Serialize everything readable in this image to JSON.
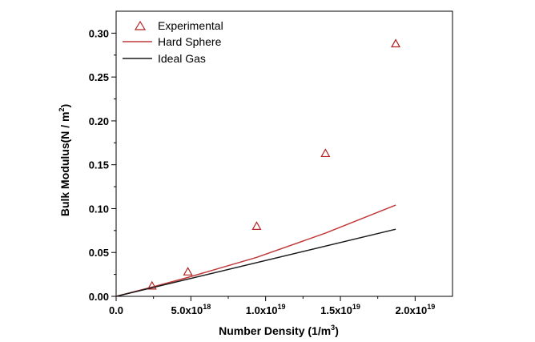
{
  "chart_data": {
    "type": "scatter",
    "xlabel": "Number Density (1/m",
    "xlabel_sup": "3",
    "xlabel_end": ")",
    "ylabel": "Bulk Modulus(N / m",
    "ylabel_sup": "2",
    "ylabel_end": ")",
    "xlim": [
      0,
      2.25e+19
    ],
    "ylim": [
      0,
      0.325
    ],
    "x_ticks": [
      {
        "value": 0,
        "mant": "0.0",
        "exp": ""
      },
      {
        "value": 5e+18,
        "mant": "5.0x10",
        "exp": "18"
      },
      {
        "value": 1e+19,
        "mant": "1.0x10",
        "exp": "19"
      },
      {
        "value": 1.5e+19,
        "mant": "1.5x10",
        "exp": "19"
      },
      {
        "value": 2e+19,
        "mant": "2.0x10",
        "exp": "19"
      }
    ],
    "y_ticks": [
      {
        "value": 0,
        "label": "0.00"
      },
      {
        "value": 0.05,
        "label": "0.05"
      },
      {
        "value": 0.1,
        "label": "0.10"
      },
      {
        "value": 0.15,
        "label": "0.15"
      },
      {
        "value": 0.2,
        "label": "0.20"
      },
      {
        "value": 0.25,
        "label": "0.25"
      },
      {
        "value": 0.3,
        "label": "0.30"
      }
    ],
    "series": [
      {
        "name": "Experimental",
        "kind": "scatter",
        "marker": "triangle",
        "color": "#b22222",
        "points": [
          [
            2.4e+18,
            0.012
          ],
          [
            4.8e+18,
            0.028
          ],
          [
            9.4e+18,
            0.08
          ],
          [
            1.4e+19,
            0.163
          ],
          [
            1.87e+19,
            0.288
          ]
        ]
      },
      {
        "name": "Hard Sphere",
        "kind": "line",
        "color": "#c0393b",
        "points": [
          [
            0,
            0.0
          ],
          [
            2.4e+18,
            0.0105
          ],
          [
            4.8e+18,
            0.0215
          ],
          [
            9.4e+18,
            0.0445
          ],
          [
            1.4e+19,
            0.072
          ],
          [
            1.87e+19,
            0.104
          ]
        ]
      },
      {
        "name": "Ideal Gas",
        "kind": "line",
        "color": "#1a1a1a",
        "points": [
          [
            0,
            0.0
          ],
          [
            1.87e+19,
            0.0765
          ]
        ]
      }
    ],
    "legend": "top-left",
    "grid": false
  }
}
